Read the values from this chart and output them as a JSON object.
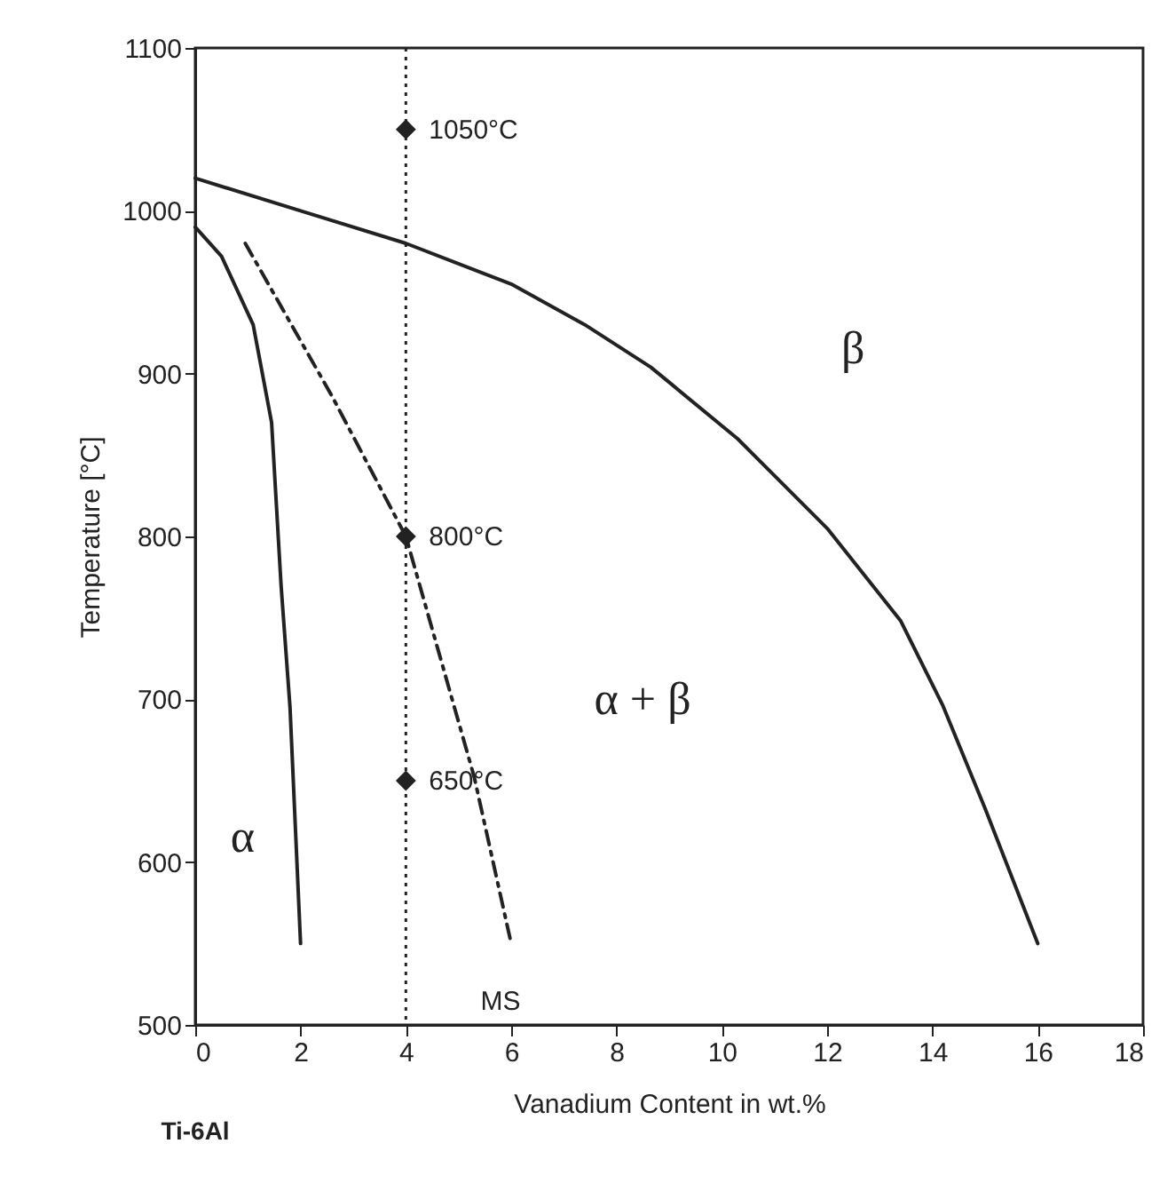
{
  "chart_data": {
    "type": "line",
    "xlabel": "Vanadium Content in wt.%",
    "ylabel": "Temperature [°C]",
    "xlim": [
      0,
      18
    ],
    "ylim": [
      500,
      1100
    ],
    "xticks": [
      0,
      2,
      4,
      6,
      8,
      10,
      12,
      14,
      16,
      18
    ],
    "yticks": [
      500,
      600,
      700,
      800,
      900,
      1000,
      1100
    ],
    "grid": false,
    "series": [
      {
        "color": "#222222",
        "line_style": "solid",
        "marker": "none",
        "x": [
          0,
          2,
          4,
          6,
          7.4,
          8.65,
          10.3,
          12,
          13.4,
          14.2,
          15,
          16
        ],
        "values": [
          1020,
          1000,
          980,
          955,
          930,
          904,
          860,
          805,
          748,
          696,
          633,
          550
        ]
      },
      {
        "color": "#222222",
        "line_style": "solid",
        "marker": "none",
        "x": [
          0,
          0.5,
          1.1,
          1.45,
          1.63,
          1.8,
          2
        ],
        "values": [
          990,
          972,
          930,
          870,
          770,
          695,
          550
        ]
      },
      {
        "color": "#222222",
        "line_style": "dashed",
        "marker": "none",
        "x": [
          0.95,
          2.6,
          4,
          5.3,
          6
        ],
        "values": [
          980,
          886,
          800,
          652,
          550
        ]
      },
      {
        "type": "scatter",
        "color": "#222222",
        "marker": "diamond",
        "x": [
          4,
          4,
          4
        ],
        "values": [
          1050,
          800,
          650
        ],
        "value_labels": [
          "1050°C",
          "800°C",
          "650°C"
        ]
      }
    ],
    "ref_lines": [
      {
        "axis": "x",
        "value": 4,
        "color": "#222222",
        "line_style": "dotted"
      }
    ],
    "annotations": [
      "β",
      "α + β",
      "α",
      "MS",
      "Ti-6Al"
    ]
  }
}
